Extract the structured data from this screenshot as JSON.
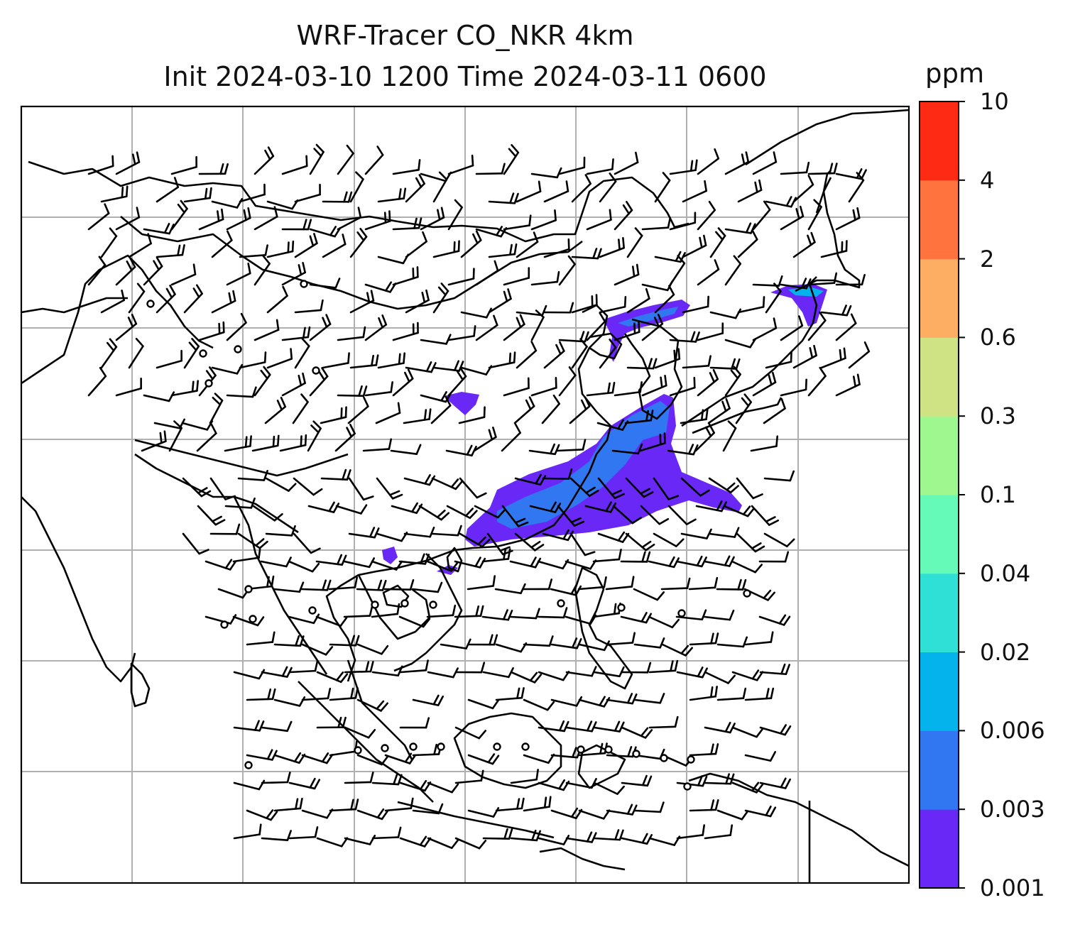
{
  "title": {
    "line1": "WRF-Tracer CO_NKR 4km",
    "line2": "Init 2024-03-10 1200 Time 2024-03-11 0600"
  },
  "colorbar": {
    "unit": "ppm",
    "levels": [
      "0.001",
      "0.003",
      "0.006",
      "0.02",
      "0.04",
      "0.1",
      "0.3",
      "0.6",
      "2",
      "4",
      "10"
    ],
    "colors": [
      "#6a28f6",
      "#3277f2",
      "#04b2ec",
      "#2fe0d6",
      "#66fab8",
      "#9ef88f",
      "#cfe384",
      "#feae62",
      "#ff733e",
      "#ff2a14"
    ]
  },
  "map": {
    "gridlines": true,
    "coastline_color": "#000000",
    "wind_barb_color": "#000000",
    "plume_colors": [
      "#6a28f6",
      "#3277f2",
      "#04b2ec"
    ]
  }
}
